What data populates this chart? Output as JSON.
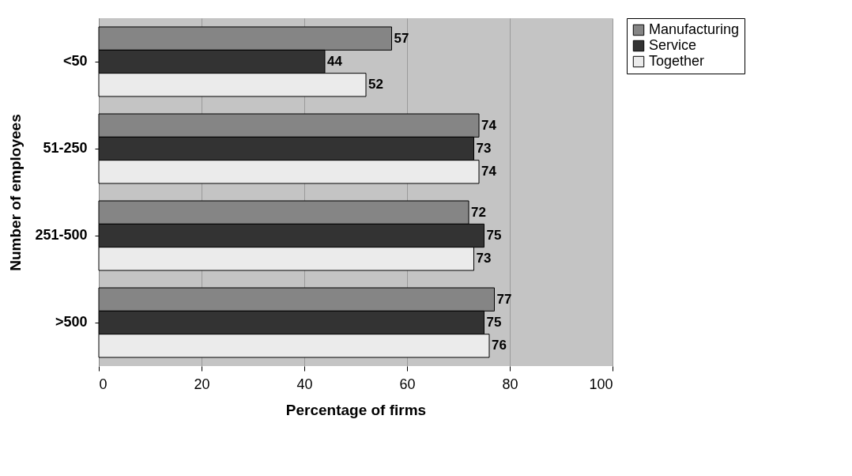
{
  "chart_data": {
    "type": "bar",
    "orientation": "horizontal",
    "xlabel": "Percentage of firms",
    "ylabel": "Number of employees",
    "categories": [
      "<50",
      "51-250",
      "251-500",
      ">500"
    ],
    "series": [
      {
        "name": "Manufacturing",
        "color": "#858585",
        "values": [
          57,
          74,
          72,
          77
        ]
      },
      {
        "name": "Service",
        "color": "#333333",
        "values": [
          44,
          73,
          75,
          75
        ]
      },
      {
        "name": "Together",
        "color": "#ebebeb",
        "values": [
          52,
          74,
          73,
          76
        ]
      }
    ],
    "xlim": [
      0,
      100
    ],
    "xticks": [
      0,
      20,
      40,
      60,
      80,
      100
    ],
    "grid": "x",
    "legend": "right",
    "data_labels": true
  }
}
